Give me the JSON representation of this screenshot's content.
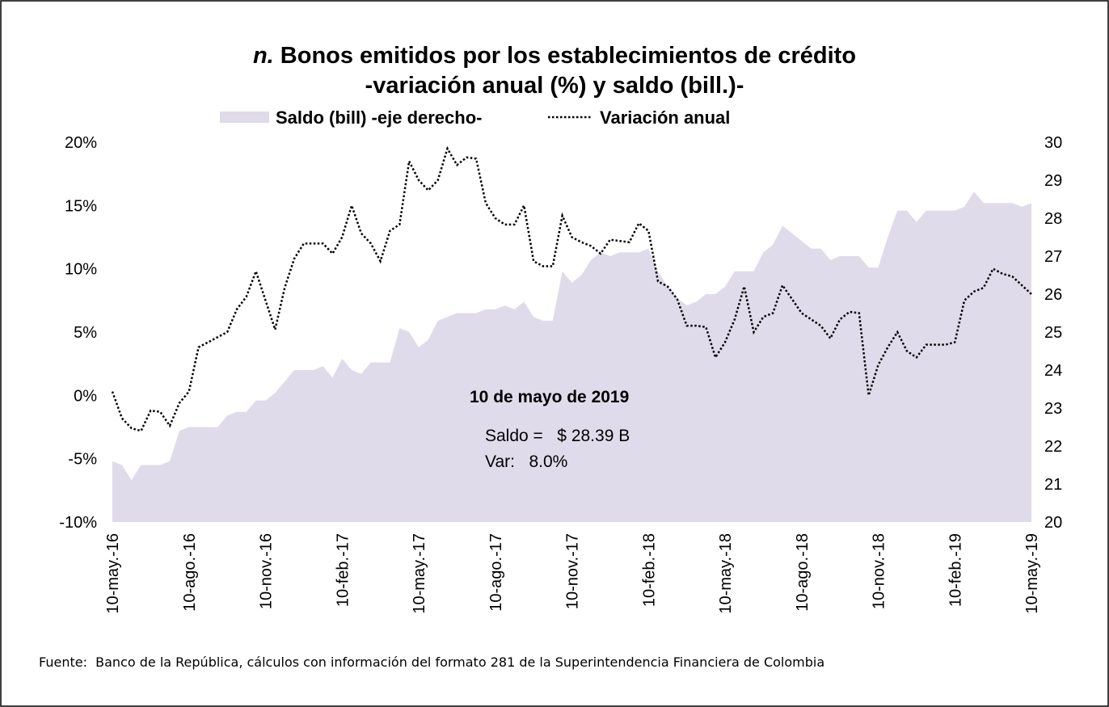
{
  "chart_data": {
    "type": "area-line",
    "title_marker": "n.",
    "title": [
      "Bonos emitidos por los establecimientos de crédito",
      "-variación anual (%) y saldo (bill.)-"
    ],
    "categories": [
      "10-may.-16",
      null,
      null,
      null,
      null,
      null,
      null,
      null,
      "10-ago.-16",
      null,
      null,
      null,
      null,
      null,
      null,
      null,
      "10-nov.-16",
      null,
      null,
      null,
      null,
      null,
      null,
      null,
      "10-feb.-17",
      null,
      null,
      null,
      null,
      null,
      null,
      null,
      "10-may.-17",
      null,
      null,
      null,
      null,
      null,
      null,
      null,
      "10-ago.-17",
      null,
      null,
      null,
      null,
      null,
      null,
      null,
      "10-nov.-17",
      null,
      null,
      null,
      null,
      null,
      null,
      null,
      "10-feb.-18",
      null,
      null,
      null,
      null,
      null,
      null,
      null,
      "10-may.-18",
      null,
      null,
      null,
      null,
      null,
      null,
      null,
      "10-ago.-18",
      null,
      null,
      null,
      null,
      null,
      null,
      null,
      "10-nov.-18",
      null,
      null,
      null,
      null,
      null,
      null,
      null,
      "10-feb.-19",
      null,
      null,
      null,
      null,
      null,
      null,
      null,
      "10-may.-19"
    ],
    "series": [
      {
        "name": "Saldo (bill) -eje derecho-",
        "kind": "area",
        "axis": "y2",
        "color": "#e0dbea",
        "values": [
          21.6,
          21.5,
          21.1,
          21.5,
          21.5,
          21.5,
          21.6,
          22.4,
          22.5,
          22.5,
          22.5,
          22.5,
          22.8,
          22.9,
          22.9,
          23.2,
          23.2,
          23.4,
          23.7,
          24.0,
          24.0,
          24.0,
          24.1,
          23.8,
          24.3,
          24.0,
          23.9,
          24.2,
          24.2,
          24.2,
          25.1,
          25.0,
          24.6,
          24.8,
          25.3,
          25.4,
          25.5,
          25.5,
          25.5,
          25.6,
          25.6,
          25.7,
          25.6,
          25.8,
          25.4,
          25.3,
          25.3,
          26.6,
          26.3,
          26.5,
          26.9,
          27.1,
          27.0,
          27.1,
          27.1,
          27.1,
          27.2,
          26.6,
          26.2,
          25.9,
          25.7,
          25.8,
          26.0,
          26.0,
          26.2,
          26.6,
          26.6,
          26.6,
          27.1,
          27.3,
          27.8,
          27.6,
          27.4,
          27.2,
          27.2,
          26.9,
          27.0,
          27.0,
          27.0,
          26.7,
          26.7,
          27.5,
          28.2,
          28.2,
          27.9,
          28.2,
          28.2,
          28.2,
          28.2,
          28.3,
          28.7,
          28.4,
          28.4,
          28.4,
          28.4,
          28.3,
          28.4
        ]
      },
      {
        "name": "Variación anual",
        "kind": "line",
        "axis": "y",
        "color": "#000000",
        "dotted": true,
        "values": [
          0.3,
          -1.8,
          -2.6,
          -2.8,
          -1.2,
          -1.3,
          -2.4,
          -0.6,
          0.3,
          3.8,
          4.2,
          4.6,
          5.0,
          6.8,
          7.8,
          9.8,
          7.5,
          5.2,
          8.5,
          10.8,
          12,
          12,
          12,
          11.2,
          12.5,
          15,
          12.8,
          12,
          10.6,
          13,
          13.5,
          18.5,
          17,
          16.2,
          17,
          19.5,
          18.2,
          18.8,
          18.7,
          15.2,
          14,
          13.5,
          13.5,
          15,
          10.6,
          10.2,
          10.2,
          14.2,
          12.5,
          12.1,
          11.8,
          11.2,
          12.3,
          12.2,
          12.1,
          13.6,
          13,
          9.0,
          8.6,
          7.6,
          5.5,
          5.5,
          5.4,
          3.0,
          4.2,
          6,
          8.6,
          5,
          6.2,
          6.5,
          8.7,
          7.6,
          6.5,
          6.0,
          5.5,
          4.5,
          6.0,
          6.6,
          6.5,
          0,
          2.4,
          3.8,
          5,
          3.5,
          3,
          4,
          4.0,
          4.0,
          4.2,
          7.5,
          8.2,
          8.5,
          10,
          9.6,
          9.4,
          8.7,
          8.0
        ]
      }
    ],
    "ylim": [
      -10,
      20
    ],
    "yticks": [
      {
        "value": -10,
        "label": "-10%"
      },
      {
        "value": -5,
        "label": "-5%"
      },
      {
        "value": 0,
        "label": "0%"
      },
      {
        "value": 5,
        "label": "5%"
      },
      {
        "value": 10,
        "label": "10%"
      },
      {
        "value": 15,
        "label": "15%"
      },
      {
        "value": 20,
        "label": "20%"
      }
    ],
    "y2lim": [
      20,
      30
    ],
    "y2ticks": [
      20,
      21,
      22,
      23,
      24,
      25,
      26,
      27,
      28,
      29,
      30
    ],
    "legend": "top",
    "annotations": {
      "heading": "10 de mayo de 2019",
      "lines": [
        "Saldo =   $ 28.39 B",
        "Var:   8.0%"
      ]
    },
    "source": "Fuente:  Banco de la República, cálculos con información del formato 281 de la Superintendencia Financiera de Colombia"
  }
}
